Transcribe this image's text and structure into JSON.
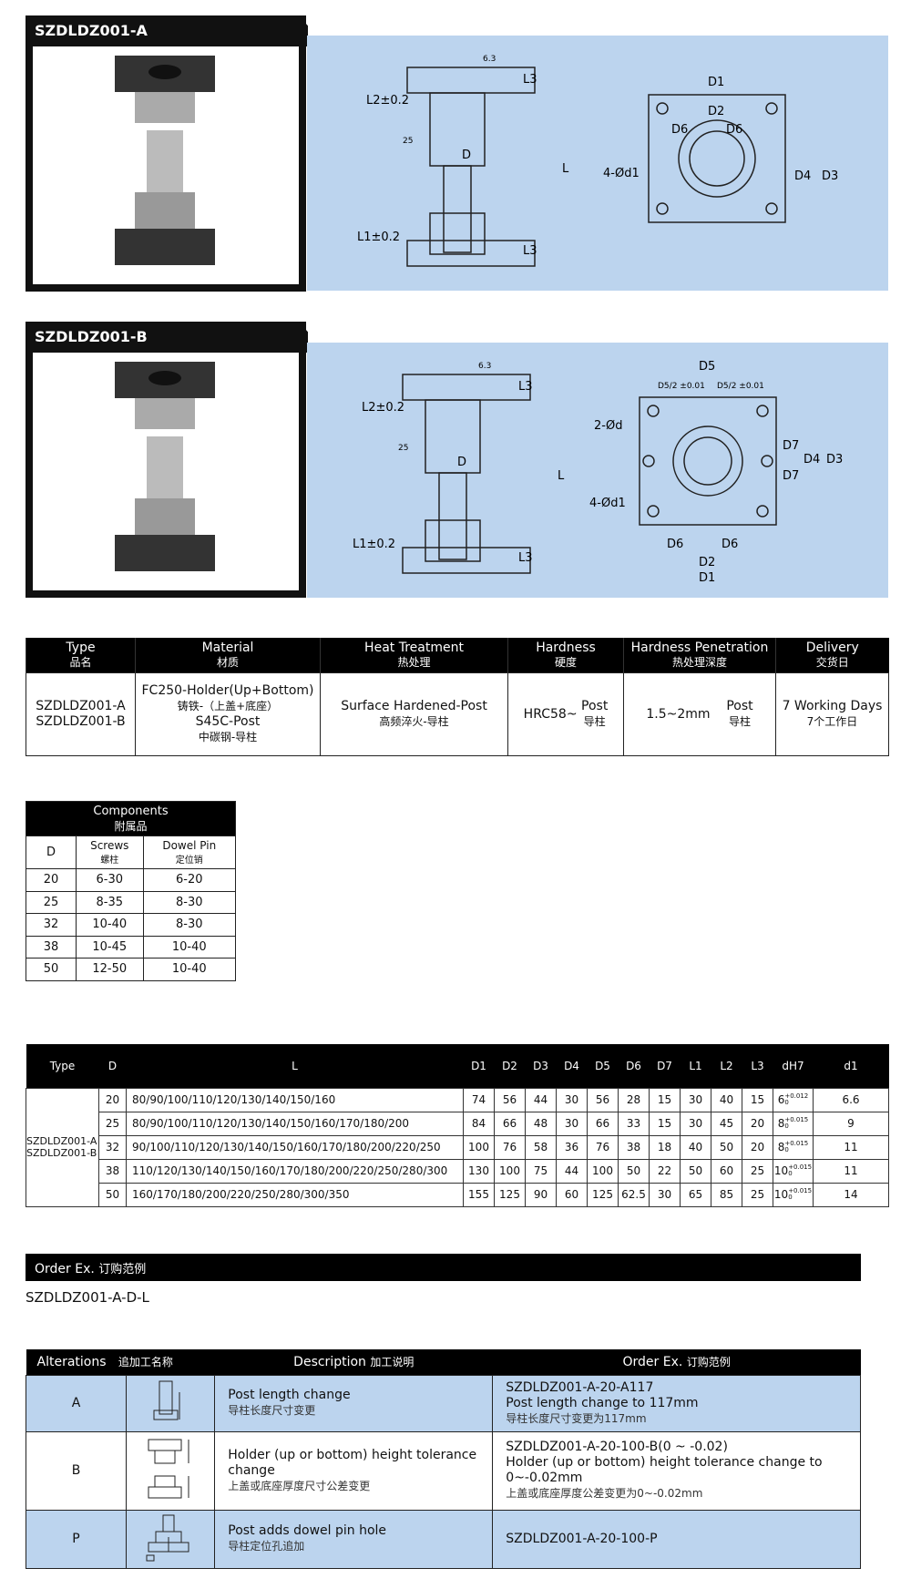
{
  "sections": [
    {
      "title": "SZDLDZ001-A",
      "labels": {
        "l3": "L3",
        "l2": "L2±0.2",
        "l1": "L1±0.2",
        "l": "L",
        "d": "D",
        "r63": "6.3",
        "r25": "25",
        "d1": "D1",
        "d2": "D2",
        "d6": "D6",
        "d4": "D4",
        "d3": "D3",
        "hole": "4-Ød1"
      }
    },
    {
      "title": "SZDLDZ001-B",
      "labels": {
        "l3": "L3",
        "l2": "L2±0.2",
        "l1": "L1±0.2",
        "l": "L",
        "d": "D",
        "r63": "6.3",
        "r25": "25",
        "d5": "D5",
        "d5tol": "D5/2 ±0.01",
        "d1": "D1",
        "d2": "D2",
        "d6": "D6",
        "d7": "D7",
        "d4": "D4",
        "d3": "D3",
        "hole": "4-Ød1",
        "pin": "2-Ød"
      }
    }
  ],
  "spec": {
    "headers": [
      {
        "en": "Type",
        "cn": "品名"
      },
      {
        "en": "Material",
        "cn": "材质"
      },
      {
        "en": "Heat Treatment",
        "cn": "热处理"
      },
      {
        "en": "Hardness",
        "cn": "硬度"
      },
      {
        "en": "Hardness Penetration",
        "cn": "热处理深度"
      },
      {
        "en": "Delivery",
        "cn": "交货日"
      }
    ],
    "type": [
      "SZDLDZ001-A",
      "SZDLDZ001-B"
    ],
    "material": {
      "a": "FC250-Holder(Up+Bottom)",
      "a_cn": "铸铁-（上盖+底座）",
      "b": "S45C-Post",
      "b_cn": "中碳钢-导柱"
    },
    "heat": {
      "en": "Surface Hardened-Post",
      "cn": "高频淬火-导柱"
    },
    "hardness": {
      "value": "HRC58~",
      "en": "Post",
      "cn": "导柱"
    },
    "penetration": {
      "value": "1.5~2mm",
      "en": "Post",
      "cn": "导柱"
    },
    "delivery": {
      "en": "7 Working Days",
      "cn": "7个工作日"
    }
  },
  "components": {
    "title": "Components",
    "title_cn": "附属品",
    "headers": [
      {
        "en": "D",
        "cn": ""
      },
      {
        "en": "Screws",
        "cn": "螺柱"
      },
      {
        "en": "Dowel Pin",
        "cn": "定位销"
      }
    ],
    "rows": [
      [
        "20",
        "6-30",
        "6-20"
      ],
      [
        "25",
        "8-35",
        "8-30"
      ],
      [
        "32",
        "10-40",
        "8-30"
      ],
      [
        "38",
        "10-45",
        "10-40"
      ],
      [
        "50",
        "12-50",
        "10-40"
      ]
    ]
  },
  "dimensions": {
    "headers": [
      "Type",
      "D",
      "L",
      "D1",
      "D2",
      "D3",
      "D4",
      "D5",
      "D6",
      "D7",
      "L1",
      "L2",
      "L3",
      "dH7",
      "d1"
    ],
    "type": [
      "SZDLDZ001-A",
      "SZDLDZ001-B"
    ],
    "rows": [
      {
        "D": "20",
        "L": "80/90/100/110/120/130/140/150/160",
        "vals": [
          "74",
          "56",
          "44",
          "30",
          "56",
          "28",
          "15",
          "30",
          "40",
          "15"
        ],
        "dh7": "6",
        "tol": "+0.012",
        "tol0": "0",
        "d1": "6.6"
      },
      {
        "D": "25",
        "L": "80/90/100/110/120/130/140/150/160/170/180/200",
        "vals": [
          "84",
          "66",
          "48",
          "30",
          "66",
          "33",
          "15",
          "30",
          "45",
          "20"
        ],
        "dh7": "8",
        "tol": "+0.015",
        "tol0": "0",
        "d1": "9"
      },
      {
        "D": "32",
        "L": "90/100/110/120/130/140/150/160/170/180/200/220/250",
        "vals": [
          "100",
          "76",
          "58",
          "36",
          "76",
          "38",
          "18",
          "40",
          "50",
          "20"
        ],
        "dh7": "8",
        "tol": "+0.015",
        "tol0": "0",
        "d1": "11"
      },
      {
        "D": "38",
        "L": "110/120/130/140/150/160/170/180/200/220/250/280/300",
        "vals": [
          "130",
          "100",
          "75",
          "44",
          "100",
          "50",
          "22",
          "50",
          "60",
          "25"
        ],
        "dh7": "10",
        "tol": "+0.015",
        "tol0": "0",
        "d1": "11"
      },
      {
        "D": "50",
        "L": "160/170/180/200/220/250/280/300/350",
        "vals": [
          "155",
          "125",
          "90",
          "60",
          "125",
          "62.5",
          "30",
          "65",
          "85",
          "25"
        ],
        "dh7": "10",
        "tol": "+0.015",
        "tol0": "0",
        "d1": "14"
      }
    ]
  },
  "order": {
    "title": "Order Ex.",
    "title_cn": "订购范例",
    "example": "SZDLDZ001-A-D-L"
  },
  "alterations": {
    "headers": {
      "alt": "Alterations",
      "alt_cn": "追加工名称",
      "desc": "Description",
      "desc_cn": "加工说明",
      "order": "Order Ex.",
      "order_cn": "订购范例"
    },
    "rows": [
      {
        "code": "A",
        "desc": "Post length change",
        "desc_cn": "导柱长度尺寸变更",
        "order": [
          "SZDLDZ001-A-20-A117",
          "Post length change to 117mm",
          "导柱长度尺寸变更为117mm"
        ]
      },
      {
        "code": "B",
        "desc": "Holder (up or bottom) height tolerance change",
        "desc_cn": "上盖或底座厚度尺寸公差变更",
        "order": [
          "SZDLDZ001-A-20-100-B(0 ~ -0.02)",
          "Holder (up or bottom) height tolerance change to 0~-0.02mm",
          "上盖或底座厚度公差变更为0~-0.02mm"
        ]
      },
      {
        "code": "P",
        "desc": "Post adds dowel pin hole",
        "desc_cn": "导柱定位孔追加",
        "order": [
          "SZDLDZ001-A-20-100-P"
        ]
      }
    ]
  },
  "colors": {
    "panel_blue": "#bcd4ee",
    "header_black": "#000000"
  }
}
